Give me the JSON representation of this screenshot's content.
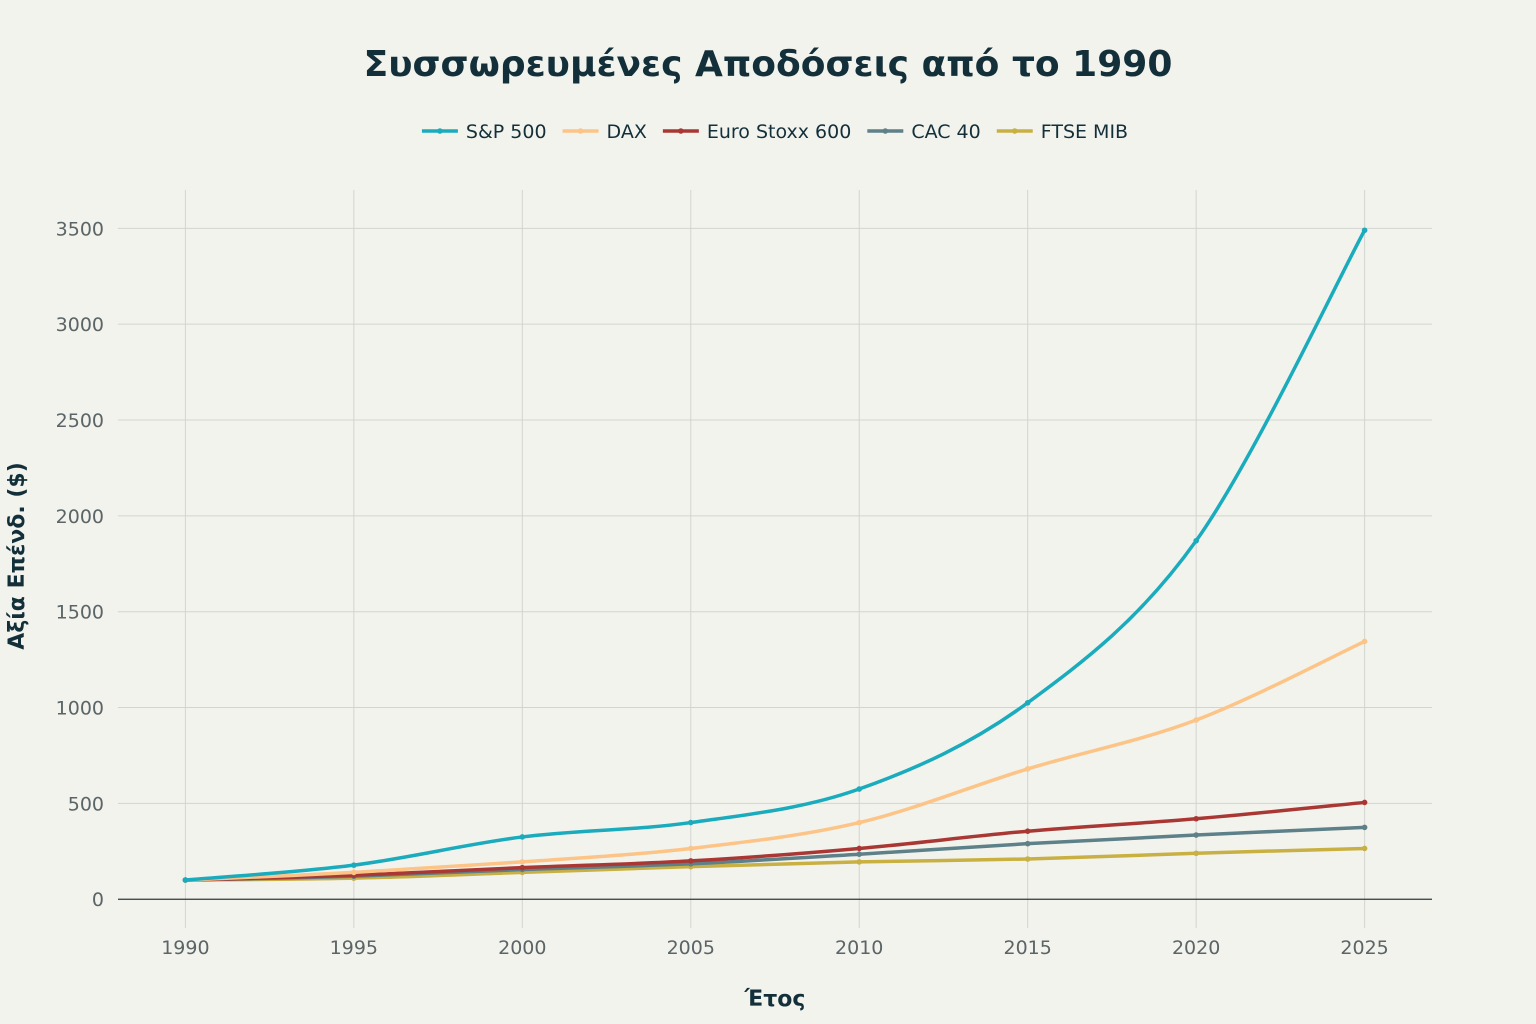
{
  "chart_data": {
    "type": "line",
    "title": "Συσσωρευμένες Αποδόσεις από το 1990",
    "xlabel": "Έτος",
    "ylabel": "Αξία Επένδ. ($)",
    "x": [
      1990,
      1995,
      2000,
      2005,
      2010,
      2015,
      2020,
      2025
    ],
    "xlim": [
      1988,
      2027
    ],
    "ylim": [
      -150,
      3700
    ],
    "x_ticks": [
      "1990",
      "1995",
      "2000",
      "2005",
      "2010",
      "2015",
      "2020",
      "2025"
    ],
    "y_ticks": [
      "0",
      "500",
      "1000",
      "1500",
      "2000",
      "2500",
      "3000",
      "3500"
    ],
    "grid": true,
    "legend_position": "top-center",
    "series": [
      {
        "name": "S&P 500",
        "color": "#1aabbd",
        "values": [
          100,
          178,
          325,
          400,
          575,
          1025,
          1870,
          3490
        ]
      },
      {
        "name": "DAX",
        "color": "#fcc487",
        "values": [
          100,
          140,
          195,
          265,
          400,
          680,
          935,
          1345
        ]
      },
      {
        "name": "Euro Stoxx 600",
        "color": "#a93834",
        "values": [
          100,
          125,
          165,
          200,
          265,
          355,
          420,
          505
        ]
      },
      {
        "name": "CAC 40",
        "color": "#5e8089",
        "values": [
          100,
          120,
          155,
          185,
          235,
          290,
          335,
          375
        ]
      },
      {
        "name": "FTSE MIB",
        "color": "#c9b043",
        "values": [
          100,
          110,
          140,
          170,
          195,
          210,
          240,
          265
        ]
      }
    ]
  }
}
